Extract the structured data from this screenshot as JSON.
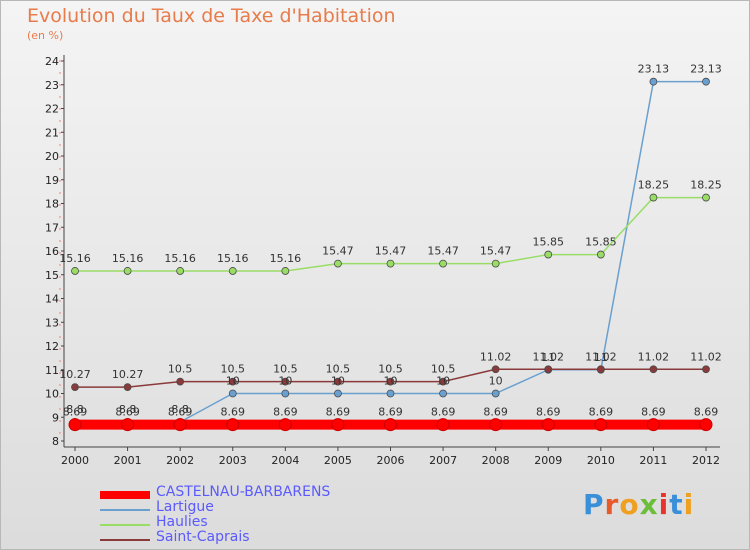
{
  "chart_data": {
    "type": "line",
    "title": "Evolution du Taux de Taxe d'Habitation",
    "subtitle": "(en %)",
    "categories": [
      "2000",
      "2001",
      "2002",
      "2003",
      "2004",
      "2005",
      "2006",
      "2007",
      "2008",
      "2009",
      "2010",
      "2011",
      "2012"
    ],
    "ylim": [
      8,
      24
    ],
    "yticks": [
      8,
      9,
      10,
      11,
      12,
      13,
      14,
      15,
      16,
      17,
      18,
      19,
      20,
      21,
      22,
      23,
      24
    ],
    "grid": false,
    "legend_position": "bottom-left",
    "series": [
      {
        "name": "CASTELNAU-BARBARENS",
        "color": "#ff0000",
        "values": [
          8.69,
          8.69,
          8.69,
          8.69,
          8.69,
          8.69,
          8.69,
          8.69,
          8.69,
          8.69,
          8.69,
          8.69,
          8.69
        ],
        "labels": [
          "8.69",
          "8.69",
          "8.69",
          "8.69",
          "8.69",
          "8.69",
          "8.69",
          "8.69",
          "8.69",
          "8.69",
          "8.69",
          "8.69",
          "8.69"
        ]
      },
      {
        "name": "Lartigue",
        "color": "#6aa0d0",
        "values": [
          8.8,
          8.8,
          8.8,
          10,
          10,
          10,
          10,
          10,
          10,
          11,
          11,
          23.13,
          23.13
        ],
        "labels": [
          "8.8",
          "8.8",
          "8.8",
          "10",
          "10",
          "10",
          "10",
          "10",
          "10",
          "11",
          "11",
          "23.13",
          "23.13"
        ]
      },
      {
        "name": "Haulies",
        "color": "#99dd66",
        "values": [
          15.16,
          15.16,
          15.16,
          15.16,
          15.16,
          15.47,
          15.47,
          15.47,
          15.47,
          15.85,
          15.85,
          18.25,
          18.25
        ],
        "labels": [
          "15.16",
          "15.16",
          "15.16",
          "15.16",
          "15.16",
          "15.47",
          "15.47",
          "15.47",
          "15.47",
          "15.85",
          "15.85",
          "18.25",
          "18.25"
        ]
      },
      {
        "name": "Saint-Caprais",
        "color": "#8a3a3a",
        "values": [
          10.27,
          10.27,
          10.5,
          10.5,
          10.5,
          10.5,
          10.5,
          10.5,
          11.02,
          11.02,
          11.02,
          11.02,
          11.02
        ],
        "labels": [
          "10.27",
          "10.27",
          "10.5",
          "10.5",
          "10.5",
          "10.5",
          "10.5",
          "10.5",
          "11.02",
          "11.02",
          "11.02",
          "11.02",
          "11.02"
        ]
      }
    ]
  },
  "logo": {
    "text": "Proxiti"
  }
}
